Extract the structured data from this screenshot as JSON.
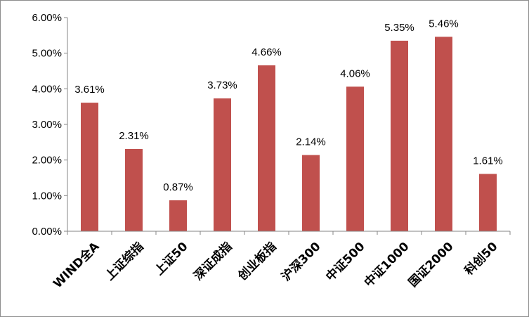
{
  "chart_data": {
    "type": "bar",
    "categories": [
      "WIND全A",
      "上证综指",
      "上证50",
      "深证成指",
      "创业板指",
      "沪深300",
      "中证500",
      "中证1000",
      "国证2000",
      "科创50"
    ],
    "values": [
      3.61,
      2.31,
      0.87,
      3.73,
      4.66,
      2.14,
      4.06,
      5.35,
      5.46,
      1.61
    ],
    "data_labels": [
      "3.61%",
      "2.31%",
      "0.87%",
      "3.73%",
      "4.66%",
      "2.14%",
      "4.06%",
      "5.35%",
      "5.46%",
      "1.61%"
    ],
    "y_ticks": [
      "0.00%",
      "1.00%",
      "2.00%",
      "3.00%",
      "4.00%",
      "5.00%",
      "6.00%"
    ],
    "ylim": [
      0,
      6
    ],
    "bar_color": "#C0504D",
    "title": "",
    "xlabel": "",
    "ylabel": "",
    "grid": false,
    "legend": "none"
  }
}
